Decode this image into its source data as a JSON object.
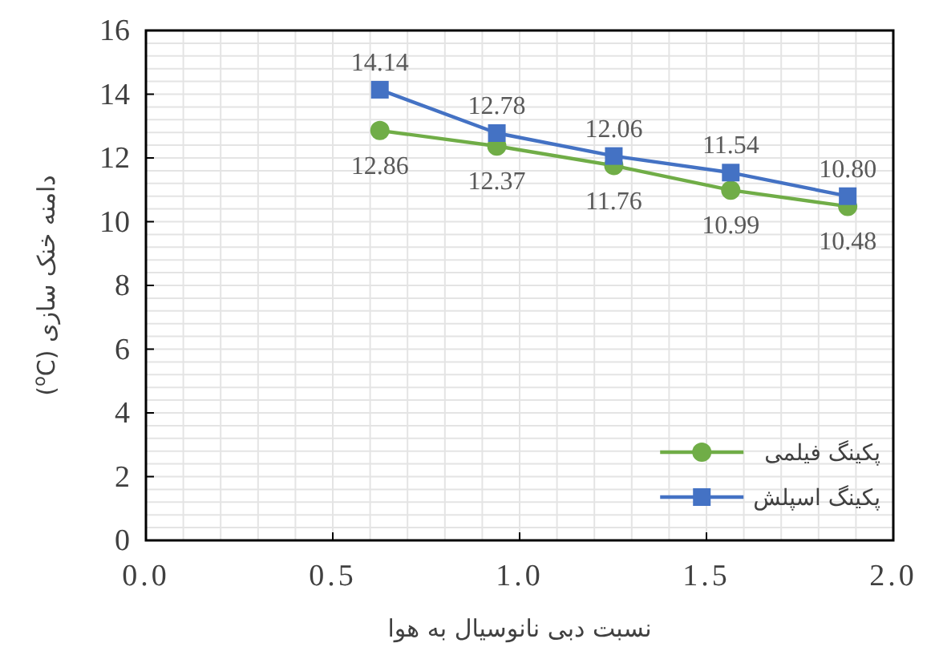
{
  "chart_data": {
    "type": "line",
    "xlabel": "نسبت دبی نانوسیال به هوا",
    "ylabel": "دامنه خنک سازی ($^{o}$C)",
    "x": [
      0.626,
      0.939,
      1.252,
      1.565,
      1.878
    ],
    "series": [
      {
        "name": "پکینگ فیلمی",
        "color": "#70ad47",
        "marker": "circle",
        "values": [
          12.86,
          12.37,
          11.76,
          10.99,
          10.48
        ],
        "value_labels": [
          "12.86",
          "12.37",
          "11.76",
          "10.99",
          "10.48"
        ]
      },
      {
        "name": "پکینگ اسپلش",
        "color": "#4472c4",
        "marker": "square",
        "values": [
          14.14,
          12.78,
          12.06,
          11.54,
          10.8
        ],
        "value_labels": [
          "14.14",
          "12.78",
          "12.06",
          "11.54",
          "10.80"
        ]
      }
    ],
    "xlim": [
      0,
      2
    ],
    "xticks": [
      {
        "value": 0,
        "label": "0.0"
      },
      {
        "value": 0.5,
        "label": "0.5"
      },
      {
        "value": 1,
        "label": "1.0"
      },
      {
        "value": 1.5,
        "label": "1.5"
      },
      {
        "value": 2,
        "label": "2.0"
      }
    ],
    "ylim": [
      0,
      16
    ],
    "yticks": [
      0,
      2,
      4,
      6,
      8,
      10,
      12,
      14,
      16
    ],
    "grid": true,
    "legend": "bottom right",
    "line_style": "solid"
  }
}
